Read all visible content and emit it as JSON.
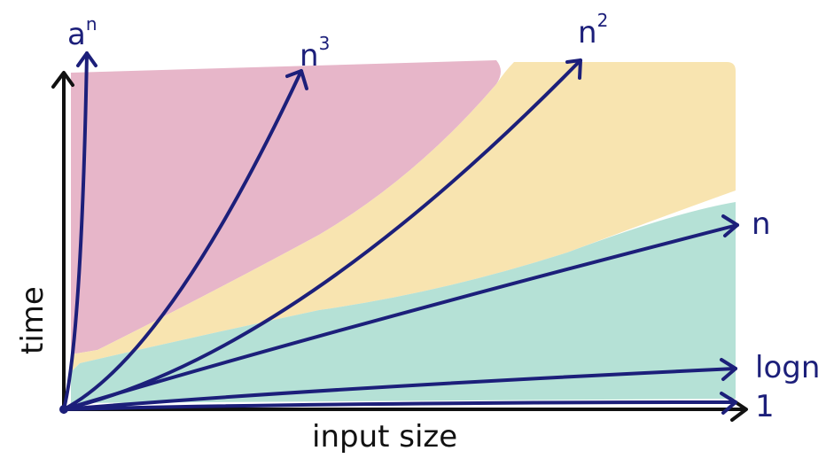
{
  "chart_data": {
    "type": "line",
    "xlabel": "input size",
    "ylabel": "time",
    "grid": false,
    "legend": "none",
    "series": [
      {
        "name": "a^n",
        "label_base": "a",
        "label_sup": "n",
        "function": "a^n",
        "values_approx": [
          0,
          1.0
        ]
      },
      {
        "name": "n^3",
        "label_base": "n",
        "label_sup": "3",
        "function": "n^3",
        "values_approx": [
          0,
          1.0
        ]
      },
      {
        "name": "n^2",
        "label_base": "n",
        "label_sup": "2",
        "function": "n^2",
        "values_approx": [
          0,
          1.0
        ]
      },
      {
        "name": "n",
        "label_base": "n",
        "label_sup": "",
        "function": "n",
        "values_approx": [
          0,
          0.52
        ]
      },
      {
        "name": "logn",
        "label_base": "logn",
        "label_sup": "",
        "function": "log n",
        "values_approx": [
          0,
          0.1
        ]
      },
      {
        "name": "1",
        "label_base": "1",
        "label_sup": "",
        "function": "1",
        "values_approx": [
          0,
          0.01
        ]
      }
    ],
    "regions": [
      {
        "name": "pink",
        "color": "#e7b6c9"
      },
      {
        "name": "yellow",
        "color": "#f8e4b0"
      },
      {
        "name": "teal",
        "color": "#b5e1d6"
      }
    ],
    "colors": {
      "curve": "#1c1f7a",
      "axis": "#111111"
    }
  }
}
